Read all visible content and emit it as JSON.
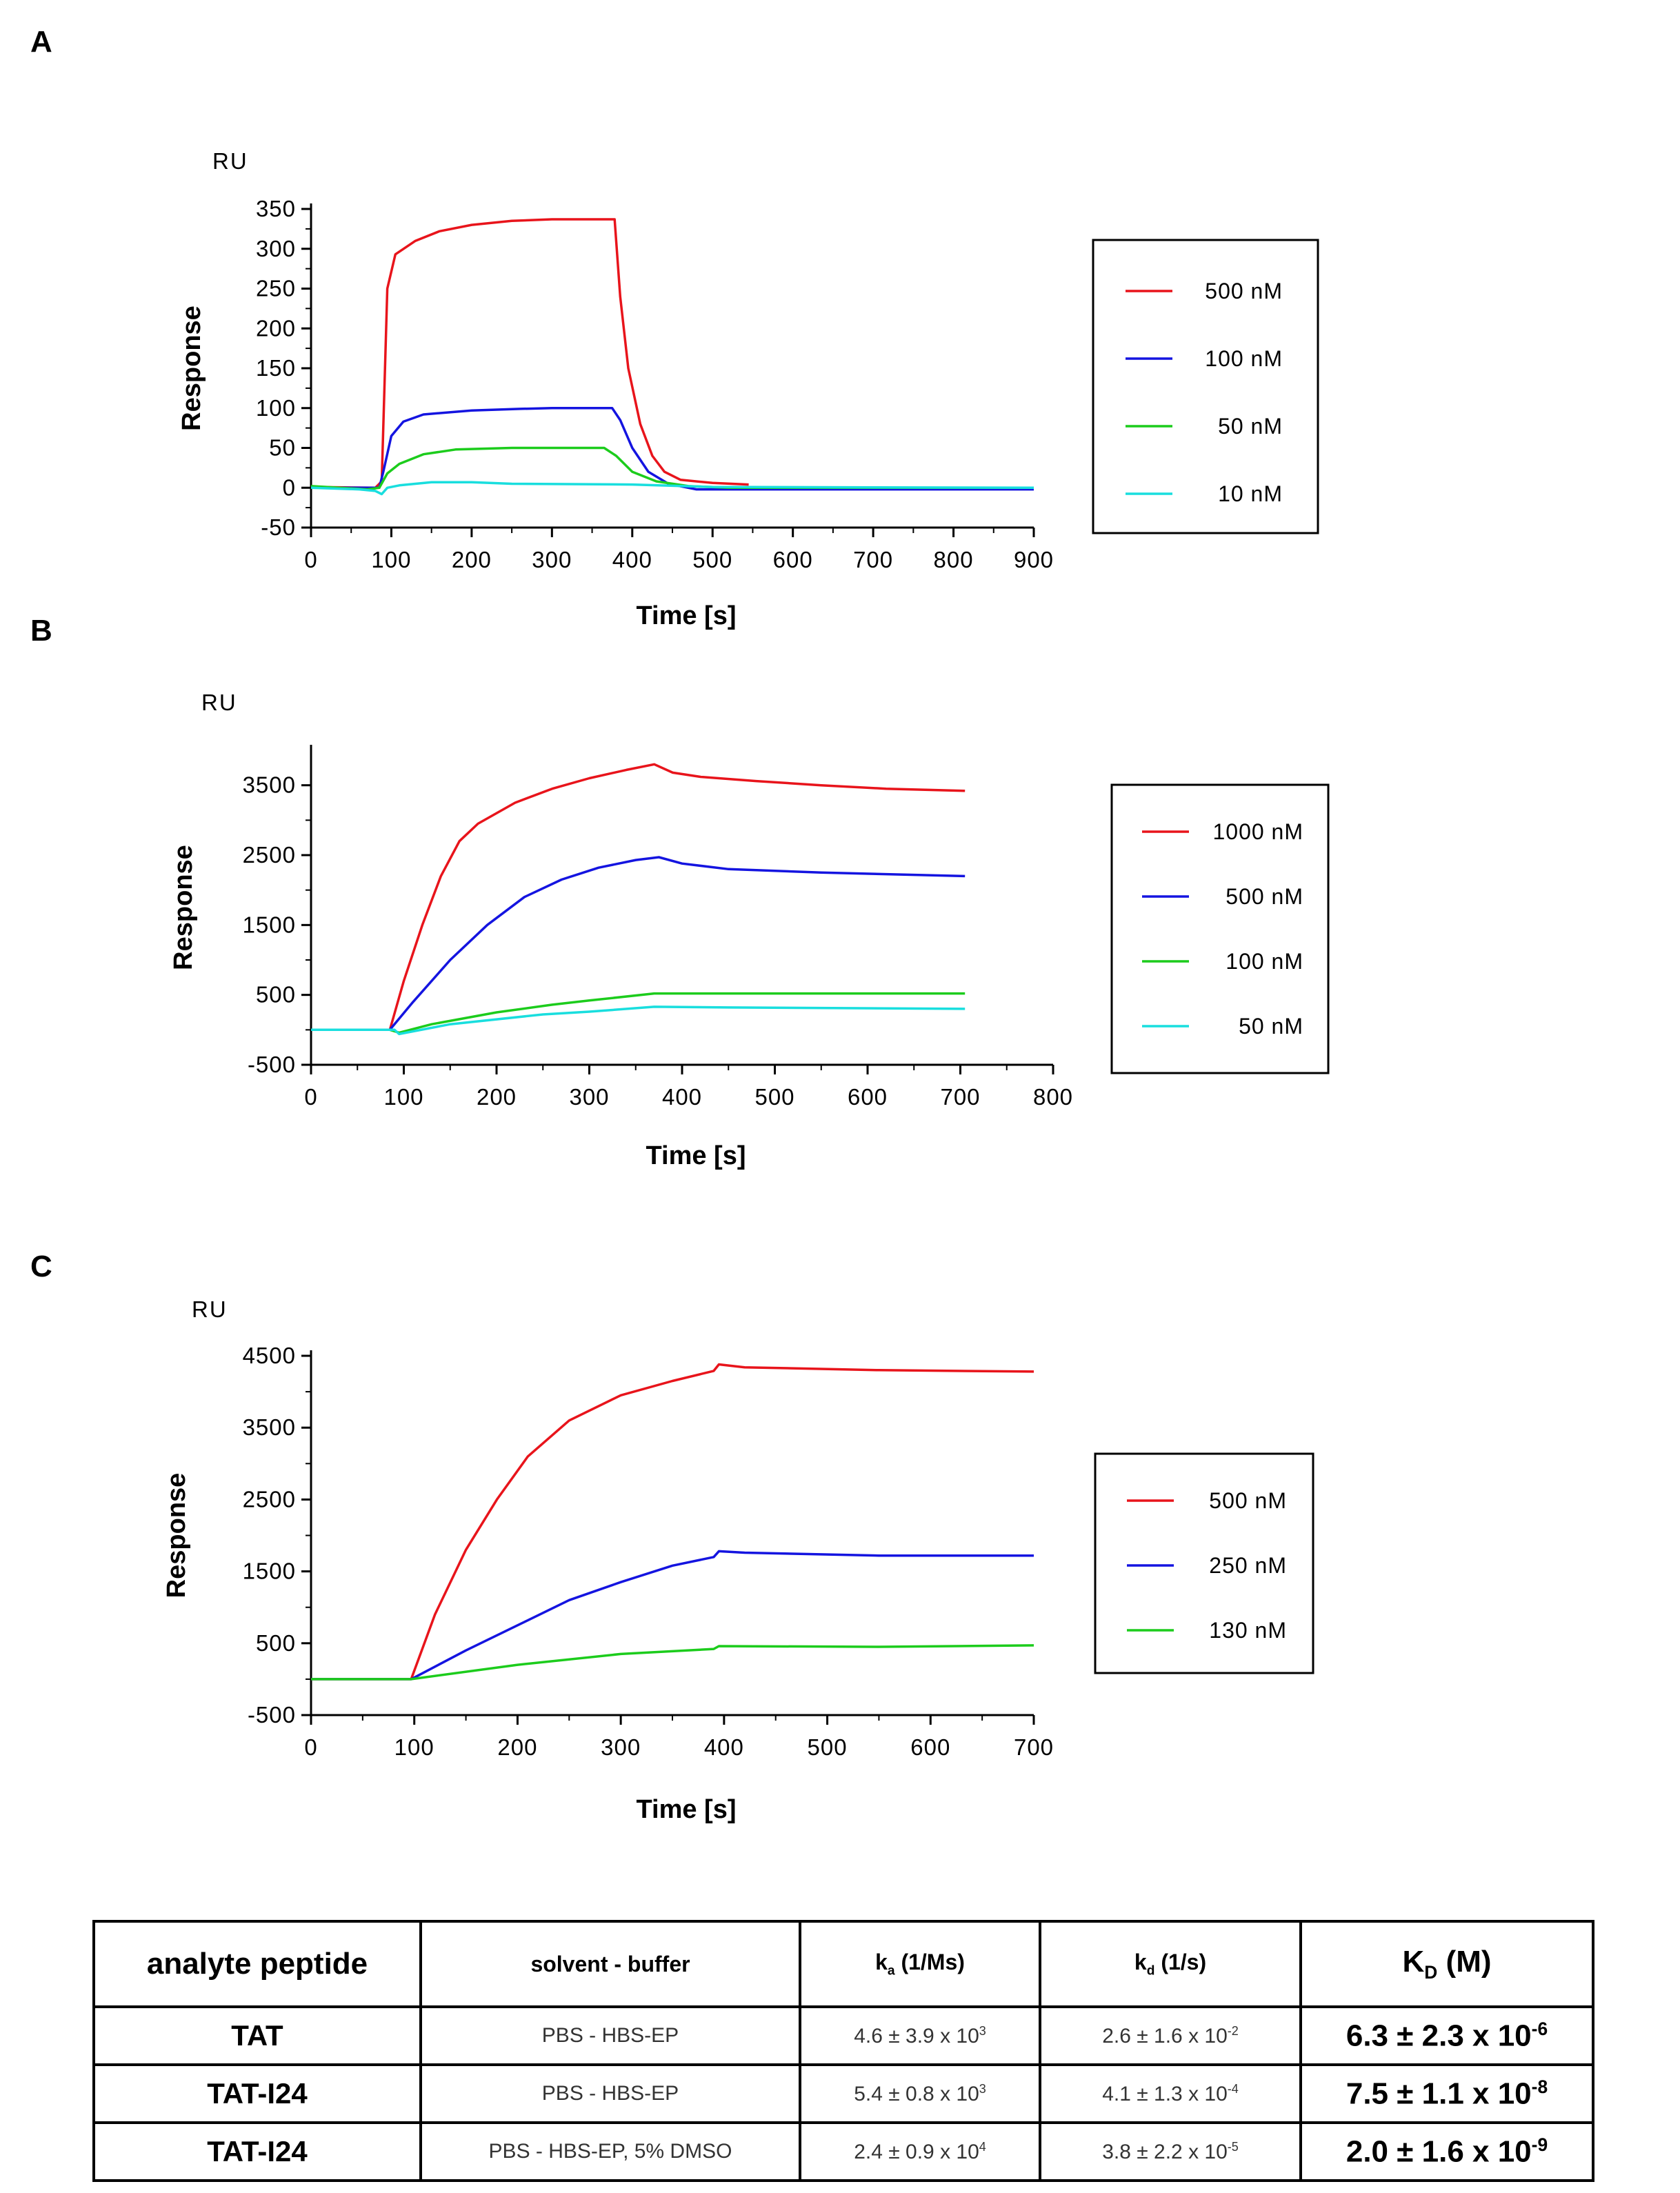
{
  "chart_data": [
    {
      "panel": "A",
      "type": "line",
      "unit_label": "RU",
      "ylabel": "Response",
      "xlabel": "Time [s]",
      "xlim": [
        0,
        900
      ],
      "ylim": [
        -50,
        350
      ],
      "xticks": [
        0,
        100,
        200,
        300,
        400,
        500,
        600,
        700,
        800,
        900
      ],
      "yticks": [
        -50,
        0,
        50,
        100,
        150,
        200,
        250,
        300,
        350
      ],
      "legend_position": "right",
      "series": [
        {
          "name": "500 nM",
          "color": "#e8141b",
          "points": [
            [
              0,
              1
            ],
            [
              80,
              0
            ],
            [
              88,
              8
            ],
            [
              95,
              250
            ],
            [
              105,
              293
            ],
            [
              130,
              310
            ],
            [
              160,
              322
            ],
            [
              200,
              330
            ],
            [
              250,
              335
            ],
            [
              300,
              337
            ],
            [
              378,
              337
            ],
            [
              385,
              240
            ],
            [
              395,
              150
            ],
            [
              410,
              80
            ],
            [
              425,
              40
            ],
            [
              440,
              20
            ],
            [
              460,
              10
            ],
            [
              500,
              6
            ],
            [
              545,
              4
            ]
          ]
        },
        {
          "name": "100 nM",
          "color": "#1414e0",
          "points": [
            [
              0,
              0
            ],
            [
              85,
              0
            ],
            [
              90,
              20
            ],
            [
              100,
              65
            ],
            [
              115,
              83
            ],
            [
              140,
              92
            ],
            [
              200,
              97
            ],
            [
              260,
              99
            ],
            [
              300,
              100
            ],
            [
              375,
              100
            ],
            [
              385,
              85
            ],
            [
              400,
              50
            ],
            [
              420,
              20
            ],
            [
              445,
              5
            ],
            [
              480,
              -2
            ],
            [
              600,
              -2
            ],
            [
              750,
              -2
            ],
            [
              900,
              -2
            ]
          ]
        },
        {
          "name": "50 nM",
          "color": "#1ccc1c",
          "points": [
            [
              0,
              2
            ],
            [
              70,
              -2
            ],
            [
              85,
              0
            ],
            [
              95,
              18
            ],
            [
              110,
              30
            ],
            [
              140,
              42
            ],
            [
              180,
              48
            ],
            [
              250,
              50
            ],
            [
              365,
              50
            ],
            [
              380,
              40
            ],
            [
              400,
              20
            ],
            [
              430,
              8
            ],
            [
              470,
              2
            ],
            [
              520,
              0
            ],
            [
              900,
              0
            ]
          ]
        },
        {
          "name": "10 nM",
          "color": "#19dede",
          "points": [
            [
              0,
              0
            ],
            [
              60,
              -2
            ],
            [
              80,
              -4
            ],
            [
              88,
              -8
            ],
            [
              95,
              0
            ],
            [
              110,
              3
            ],
            [
              150,
              7
            ],
            [
              200,
              7
            ],
            [
              250,
              5
            ],
            [
              400,
              4
            ],
            [
              500,
              1
            ],
            [
              900,
              0
            ]
          ]
        }
      ]
    },
    {
      "panel": "B",
      "type": "line",
      "unit_label": "RU",
      "ylabel": "Response",
      "xlabel": "Time [s]",
      "xlim": [
        0,
        800
      ],
      "ylim": [
        -500,
        4000
      ],
      "xticks": [
        0,
        100,
        200,
        300,
        400,
        500,
        600,
        700,
        800
      ],
      "yticks": [
        -500,
        500,
        1500,
        2500,
        3500
      ],
      "legend_position": "right",
      "series": [
        {
          "name": "1000 nM",
          "color": "#e8141b",
          "points": [
            [
              0,
              0
            ],
            [
              85,
              0
            ],
            [
              100,
              700
            ],
            [
              120,
              1500
            ],
            [
              140,
              2200
            ],
            [
              160,
              2700
            ],
            [
              180,
              2950
            ],
            [
              220,
              3250
            ],
            [
              260,
              3450
            ],
            [
              300,
              3600
            ],
            [
              340,
              3720
            ],
            [
              370,
              3800
            ],
            [
              390,
              3680
            ],
            [
              420,
              3620
            ],
            [
              480,
              3560
            ],
            [
              550,
              3500
            ],
            [
              620,
              3450
            ],
            [
              705,
              3420
            ]
          ]
        },
        {
          "name": "500 nM",
          "color": "#1414e0",
          "points": [
            [
              0,
              0
            ],
            [
              85,
              0
            ],
            [
              110,
              400
            ],
            [
              150,
              1000
            ],
            [
              190,
              1500
            ],
            [
              230,
              1900
            ],
            [
              270,
              2150
            ],
            [
              310,
              2320
            ],
            [
              350,
              2430
            ],
            [
              375,
              2470
            ],
            [
              400,
              2380
            ],
            [
              450,
              2300
            ],
            [
              550,
              2250
            ],
            [
              705,
              2200
            ]
          ]
        },
        {
          "name": "100 nM",
          "color": "#1ccc1c",
          "points": [
            [
              0,
              0
            ],
            [
              85,
              0
            ],
            [
              95,
              -40
            ],
            [
              130,
              80
            ],
            [
              200,
              250
            ],
            [
              260,
              360
            ],
            [
              300,
              420
            ],
            [
              370,
              520
            ],
            [
              450,
              520
            ],
            [
              705,
              520
            ]
          ]
        },
        {
          "name": "50 nM",
          "color": "#19dede",
          "points": [
            [
              0,
              0
            ],
            [
              90,
              0
            ],
            [
              95,
              -60
            ],
            [
              150,
              80
            ],
            [
              250,
              220
            ],
            [
              300,
              260
            ],
            [
              370,
              330
            ],
            [
              450,
              320
            ],
            [
              705,
              300
            ]
          ]
        }
      ]
    },
    {
      "panel": "C",
      "type": "line",
      "unit_label": "RU",
      "ylabel": "Response",
      "xlabel": "Time [s]",
      "xlim": [
        0,
        700
      ],
      "ylim": [
        -500,
        4500
      ],
      "xticks": [
        0,
        100,
        200,
        300,
        400,
        500,
        600,
        700
      ],
      "yticks": [
        -500,
        500,
        1500,
        2500,
        3500,
        4500
      ],
      "legend_position": "right",
      "series": [
        {
          "name": "500 nM",
          "color": "#e8141b",
          "points": [
            [
              0,
              0
            ],
            [
              97,
              0
            ],
            [
              120,
              900
            ],
            [
              150,
              1800
            ],
            [
              180,
              2500
            ],
            [
              210,
              3100
            ],
            [
              250,
              3600
            ],
            [
              300,
              3950
            ],
            [
              350,
              4150
            ],
            [
              390,
              4290
            ],
            [
              395,
              4380
            ],
            [
              420,
              4340
            ],
            [
              550,
              4300
            ],
            [
              700,
              4280
            ]
          ]
        },
        {
          "name": "250 nM",
          "color": "#1414e0",
          "points": [
            [
              0,
              0
            ],
            [
              97,
              0
            ],
            [
              150,
              400
            ],
            [
              200,
              750
            ],
            [
              250,
              1100
            ],
            [
              300,
              1350
            ],
            [
              350,
              1580
            ],
            [
              390,
              1700
            ],
            [
              395,
              1780
            ],
            [
              420,
              1760
            ],
            [
              550,
              1720
            ],
            [
              700,
              1720
            ]
          ]
        },
        {
          "name": "130 nM",
          "color": "#1ccc1c",
          "points": [
            [
              0,
              0
            ],
            [
              97,
              0
            ],
            [
              200,
              200
            ],
            [
              300,
              350
            ],
            [
              390,
              420
            ],
            [
              395,
              460
            ],
            [
              550,
              450
            ],
            [
              700,
              470
            ]
          ]
        }
      ]
    }
  ],
  "panels": {
    "A": {
      "letter": "A"
    },
    "B": {
      "letter": "B"
    },
    "C": {
      "letter": "C"
    }
  },
  "table": {
    "headers": {
      "analyte": "analyte peptide",
      "solvent": "solvent - buffer",
      "ka": {
        "base": "k",
        "sub": "a",
        "rest": " (1/Ms)"
      },
      "kd": {
        "base": "k",
        "sub": "d",
        "rest": " (1/s)"
      },
      "KD": {
        "base": "K",
        "sub": "D",
        "rest": " (M)"
      }
    },
    "rows": [
      {
        "analyte": "TAT",
        "solvent": "PBS - HBS-EP",
        "ka": {
          "base": "4.6 ± 3.9 x 10",
          "exp": "3"
        },
        "kd": {
          "base": "2.6 ± 1.6 x 10",
          "exp": "-2"
        },
        "KD": {
          "base": "6.3 ± 2.3 x 10",
          "exp": "-6"
        }
      },
      {
        "analyte": "TAT-I24",
        "solvent": "PBS -  HBS-EP",
        "ka": {
          "base": "5.4 ± 0.8 x 10",
          "exp": "3"
        },
        "kd": {
          "base": "4.1 ± 1.3 x 10",
          "exp": "-4"
        },
        "KD": {
          "base": "7.5 ± 1.1 x 10",
          "exp": "-8"
        }
      },
      {
        "analyte": "TAT-I24",
        "solvent": "PBS - HBS-EP, 5% DMSO",
        "ka": {
          "base": "2.4 ± 0.9 x 10",
          "exp": "4"
        },
        "kd": {
          "base": "3.8 ± 2.2 x 10",
          "exp": "-5"
        },
        "KD": {
          "base": "2.0 ± 1.6 x 10",
          "exp": "-9"
        }
      }
    ]
  }
}
